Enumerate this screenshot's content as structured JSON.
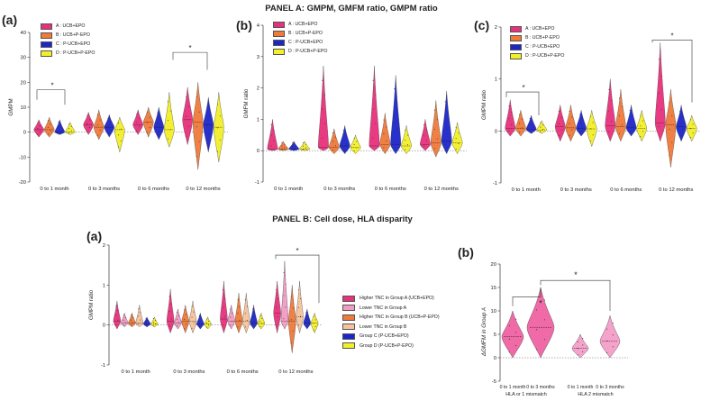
{
  "panelA_title": "PANEL A: GMPM, GMFM ratio, GMPM ratio",
  "panelB_title": "PANEL B: Cell dose, HLA disparity",
  "colors": {
    "A": "#e8317c",
    "B": "#f07a3a",
    "C": "#1d27c9",
    "D": "#f3f02a",
    "lowA": "#f29bc4",
    "lowB": "#f6c39c",
    "violin_pink": "#f06aa8",
    "violin_lightpink": "#f5a3cb"
  },
  "legendA": [
    {
      "label": "A : UCB+EPO",
      "color": "#e8317c"
    },
    {
      "label": "B : UCB+P-EPO",
      "color": "#f07a3a"
    },
    {
      "label": "C : P-UCB+EPO",
      "color": "#1d27c9"
    },
    {
      "label": "D : P-UCB+P-EPO",
      "color": "#f3f02a"
    }
  ],
  "legendPanelB": [
    {
      "label": "Higher TNC in Group A (UCB+EPO)",
      "color": "#e8317c"
    },
    {
      "label": "Lower TNC in Group A",
      "color": "#f29bc4"
    },
    {
      "label": "Higher TNC in Group B (UCB+P-EPO)",
      "color": "#f07a3a"
    },
    {
      "label": "Lower TNC in Group B",
      "color": "#f6c39c"
    },
    {
      "label": "Group C (P-UCB+EPO)",
      "color": "#1d27c9"
    },
    {
      "label": "Group D (P-UCB+P-EPO)",
      "color": "#f3f02a"
    }
  ],
  "chart_data": [
    {
      "id": "A_a",
      "label": "(a)",
      "type": "violin",
      "ylabel": "GMPM",
      "ylim": [
        -20,
        40
      ],
      "yticks": [
        -20,
        -10,
        0,
        10,
        20,
        30,
        40
      ],
      "categories": [
        "0 to 1 month",
        "0 to 3 months",
        "0 to 6 months",
        "0 to 12 months"
      ],
      "series": [
        {
          "name": "A : UCB+EPO",
          "medians": [
            1,
            3,
            3,
            5
          ],
          "ranges": [
            [
              -2,
              5
            ],
            [
              -1,
              8
            ],
            [
              -1,
              9
            ],
            [
              -5,
              18
            ]
          ]
        },
        {
          "name": "B : UCB+P-EPO",
          "medians": [
            1,
            2,
            4,
            4
          ],
          "ranges": [
            [
              -2,
              6
            ],
            [
              -3,
              9
            ],
            [
              -2,
              10
            ],
            [
              -15,
              20
            ]
          ]
        },
        {
          "name": "C : P-UCB+EPO",
          "medians": [
            0,
            2,
            2,
            3
          ],
          "ranges": [
            [
              -1,
              5
            ],
            [
              -2,
              7
            ],
            [
              -3,
              10
            ],
            [
              -8,
              14
            ]
          ]
        },
        {
          "name": "D : P-UCB+P-EPO",
          "medians": [
            0,
            1,
            1,
            2
          ],
          "ranges": [
            [
              -1,
              4
            ],
            [
              -8,
              6
            ],
            [
              -6,
              16
            ],
            [
              -12,
              16
            ]
          ]
        }
      ],
      "annotations": [
        "*",
        "*"
      ]
    },
    {
      "id": "A_b",
      "label": "(b)",
      "type": "violin",
      "ylabel": "GMFM ratio",
      "ylim": [
        -1,
        4
      ],
      "yticks": [
        -1,
        0,
        1,
        2,
        3,
        4
      ],
      "categories": [
        "0 to 1 month",
        "0 to 3 months",
        "0 to 6 months",
        "0 to 12 months"
      ],
      "series": [
        {
          "name": "A : UCB+EPO",
          "medians": [
            0.05,
            0.1,
            0.15,
            0.2
          ],
          "ranges": [
            [
              0,
              1
            ],
            [
              0,
              2.7
            ],
            [
              0,
              2.7
            ],
            [
              0,
              1
            ]
          ]
        },
        {
          "name": "B : UCB+P-EPO",
          "medians": [
            0.05,
            0.1,
            0.2,
            0.25
          ],
          "ranges": [
            [
              0,
              0.3
            ],
            [
              -0.1,
              0.7
            ],
            [
              -0.1,
              1.2
            ],
            [
              -0.2,
              1.6
            ]
          ]
        },
        {
          "name": "C : P-UCB+EPO",
          "medians": [
            0.05,
            0.15,
            0.2,
            0.3
          ],
          "ranges": [
            [
              0,
              0.3
            ],
            [
              -0.1,
              0.8
            ],
            [
              -0.1,
              2.4
            ],
            [
              -0.1,
              1.9
            ]
          ]
        },
        {
          "name": "D : P-UCB+P-EPO",
          "medians": [
            0.05,
            0.1,
            0.15,
            0.25
          ],
          "ranges": [
            [
              0,
              0.3
            ],
            [
              -0.1,
              0.5
            ],
            [
              -0.1,
              0.8
            ],
            [
              -0.1,
              0.9
            ]
          ]
        }
      ],
      "annotations": []
    },
    {
      "id": "A_c",
      "label": "(c)",
      "type": "violin",
      "ylabel": "GMPM ratio",
      "ylim": [
        -1,
        2
      ],
      "yticks": [
        -1,
        0,
        1,
        2
      ],
      "categories": [
        "0 to 1 month",
        "0 to 3 months",
        "0 to 6 months",
        "0 to 12 months"
      ],
      "series": [
        {
          "name": "A : UCB+EPO",
          "medians": [
            0.05,
            0.08,
            0.1,
            0.15
          ],
          "ranges": [
            [
              -0.1,
              0.6
            ],
            [
              -0.2,
              0.5
            ],
            [
              -0.2,
              1.0
            ],
            [
              -0.2,
              1.7
            ]
          ]
        },
        {
          "name": "B : UCB+P-EPO",
          "medians": [
            0.05,
            0.06,
            0.08,
            0.12
          ],
          "ranges": [
            [
              -0.1,
              0.4
            ],
            [
              -0.2,
              0.5
            ],
            [
              -0.2,
              0.8
            ],
            [
              -0.7,
              0.8
            ]
          ]
        },
        {
          "name": "C : P-UCB+EPO",
          "medians": [
            0.03,
            0.05,
            0.06,
            0.08
          ],
          "ranges": [
            [
              -0.05,
              0.3
            ],
            [
              -0.1,
              0.4
            ],
            [
              -0.1,
              0.5
            ],
            [
              -0.2,
              0.5
            ]
          ]
        },
        {
          "name": "D : P-UCB+P-EPO",
          "medians": [
            0.02,
            0.04,
            0.05,
            0.05
          ],
          "ranges": [
            [
              -0.05,
              0.2
            ],
            [
              -0.3,
              0.4
            ],
            [
              -0.2,
              0.4
            ],
            [
              -0.2,
              0.3
            ]
          ]
        }
      ],
      "annotations": [
        "*",
        "*"
      ]
    },
    {
      "id": "B_a",
      "label": "(a)",
      "type": "violin",
      "ylabel": "GMPM ratio",
      "ylim": [
        -1,
        2
      ],
      "yticks": [
        -1,
        0,
        1,
        2
      ],
      "categories": [
        "0 to 1 month",
        "0 to 3 months",
        "0 to 6 months",
        "0 to 12 months"
      ],
      "series": [
        {
          "name": "Higher TNC in Group A (UCB+EPO)",
          "medians": [
            0.1,
            0.1,
            0.15,
            0.3
          ],
          "ranges": [
            [
              -0.1,
              0.6
            ],
            [
              -0.2,
              0.9
            ],
            [
              -0.2,
              1.1
            ],
            [
              -0.2,
              1.1
            ]
          ]
        },
        {
          "name": "Lower TNC in Group A",
          "medians": [
            0.05,
            0.05,
            0.1,
            0.1
          ],
          "ranges": [
            [
              -0.05,
              0.3
            ],
            [
              -0.1,
              0.4
            ],
            [
              -0.1,
              0.5
            ],
            [
              -0.1,
              1.6
            ]
          ]
        },
        {
          "name": "Higher TNC in Group B (UCB+P-EPO)",
          "medians": [
            0.05,
            0.1,
            0.1,
            0.1
          ],
          "ranges": [
            [
              -0.05,
              0.3
            ],
            [
              -0.2,
              0.5
            ],
            [
              -0.2,
              0.8
            ],
            [
              -0.7,
              1.0
            ]
          ]
        },
        {
          "name": "Lower TNC in Group B",
          "medians": [
            0.05,
            0.1,
            0.1,
            0.2
          ],
          "ranges": [
            [
              -0.05,
              0.5
            ],
            [
              -0.2,
              0.6
            ],
            [
              -0.2,
              0.8
            ],
            [
              -0.2,
              1.1
            ]
          ]
        },
        {
          "name": "Group C (P-UCB+EPO)",
          "medians": [
            0.03,
            0.03,
            0.05,
            0.05
          ],
          "ranges": [
            [
              -0.05,
              0.2
            ],
            [
              -0.1,
              0.3
            ],
            [
              -0.1,
              0.5
            ],
            [
              -0.1,
              0.4
            ]
          ]
        },
        {
          "name": "Group D (P-UCB+P-EPO)",
          "medians": [
            0.02,
            0.02,
            0.04,
            0.05
          ],
          "ranges": [
            [
              -0.05,
              0.2
            ],
            [
              -0.1,
              0.2
            ],
            [
              -0.1,
              0.3
            ],
            [
              -0.2,
              0.3
            ]
          ]
        }
      ],
      "annotations": [
        "*"
      ]
    },
    {
      "id": "B_b",
      "label": "(b)",
      "type": "violin",
      "ylabel": "ΔGMFM in Group A",
      "ylim": [
        -5,
        20
      ],
      "yticks": [
        -5,
        0,
        5,
        10,
        15,
        20
      ],
      "categories": [
        "0 to 1 month",
        "0 to 3 months",
        "0 to 1 month",
        "0 to 3 months"
      ],
      "groups": [
        "HLA  or 1 mismatch",
        "HLA 2 mismatch"
      ],
      "values": [
        {
          "median": 4.5,
          "range": [
            0,
            10
          ]
        },
        {
          "median": 6.5,
          "range": [
            0,
            15
          ]
        },
        {
          "median": 2,
          "range": [
            0,
            5
          ]
        },
        {
          "median": 3.5,
          "range": [
            0,
            9
          ]
        }
      ],
      "annotations": [
        "*",
        "*"
      ]
    }
  ]
}
